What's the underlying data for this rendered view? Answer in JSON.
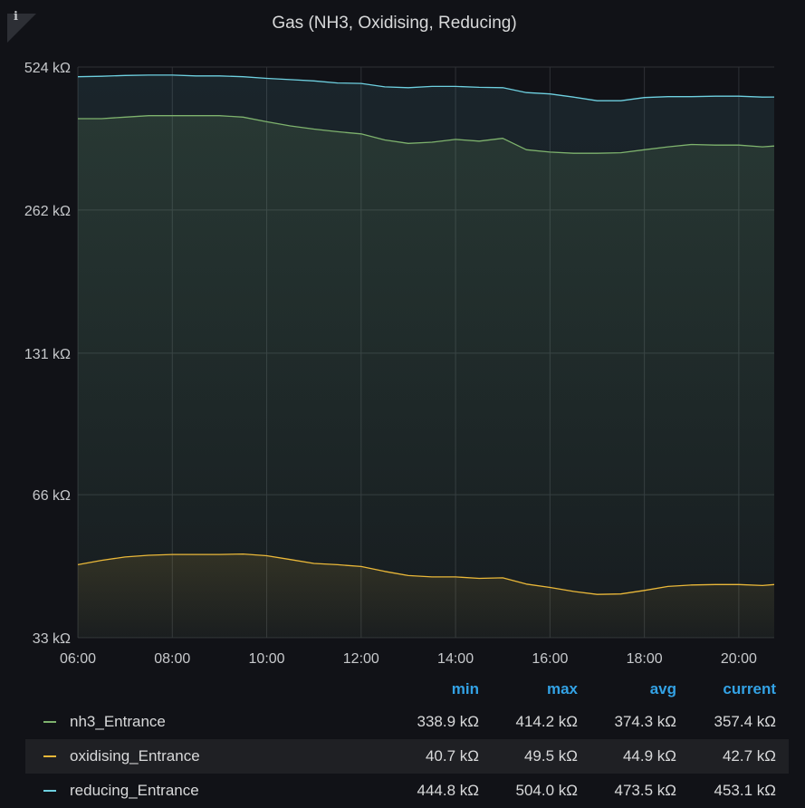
{
  "panel": {
    "info_glyph": "i",
    "title": "Gas (NH3, Oxidising, Reducing)"
  },
  "chart_data": {
    "type": "line",
    "title": "Gas (NH3, Oxidising, Reducing)",
    "y_scale": "log",
    "ylim": [
      33,
      524
    ],
    "yticks": [
      {
        "value": 33,
        "label": "33 kΩ"
      },
      {
        "value": 66,
        "label": "66 kΩ"
      },
      {
        "value": 131,
        "label": "131 kΩ"
      },
      {
        "value": 262,
        "label": "262 kΩ"
      },
      {
        "value": 524,
        "label": "524 kΩ"
      }
    ],
    "x_unit": "hours of day",
    "xlim": [
      6,
      20.75
    ],
    "xticks": [
      {
        "value": 6,
        "label": "06:00"
      },
      {
        "value": 8,
        "label": "08:00"
      },
      {
        "value": 10,
        "label": "10:00"
      },
      {
        "value": 12,
        "label": "12:00"
      },
      {
        "value": 14,
        "label": "14:00"
      },
      {
        "value": 16,
        "label": "16:00"
      },
      {
        "value": 18,
        "label": "18:00"
      },
      {
        "value": 20,
        "label": "20:00"
      }
    ],
    "grid": true,
    "legend_placement": "bottom",
    "x": [
      6,
      6.5,
      7,
      7.5,
      8,
      8.5,
      9,
      9.5,
      10,
      10.5,
      11,
      11.5,
      12,
      12.5,
      13,
      13.5,
      14,
      14.5,
      15,
      15.5,
      16,
      16.5,
      17,
      17.5,
      18,
      18.5,
      19,
      19.5,
      20,
      20.5,
      20.75
    ],
    "series": [
      {
        "name": "nh3_Entrance",
        "color": "#7eb26d",
        "values": [
          408,
          408,
          411,
          414,
          414,
          414,
          414,
          411,
          402,
          394,
          388,
          383,
          379,
          368,
          362,
          364,
          369,
          366,
          371,
          351,
          347,
          345,
          345,
          346,
          351,
          356,
          360,
          359,
          359,
          356,
          357.4
        ]
      },
      {
        "name": "oxidising_Entrance",
        "color": "#eab839",
        "values": [
          47.0,
          48.0,
          48.8,
          49.2,
          49.4,
          49.4,
          49.4,
          49.5,
          49.1,
          48.2,
          47.3,
          47.0,
          46.6,
          45.5,
          44.6,
          44.3,
          44.3,
          44.0,
          44.1,
          42.8,
          42.1,
          41.3,
          40.7,
          40.8,
          41.5,
          42.3,
          42.6,
          42.7,
          42.7,
          42.5,
          42.7
        ]
      },
      {
        "name": "reducing_Entrance",
        "color": "#6ed0e0",
        "values": [
          500,
          501,
          503,
          504,
          504,
          502,
          502,
          500,
          496,
          493,
          490,
          485,
          484,
          476,
          474,
          477,
          477,
          475,
          474,
          463,
          460,
          453,
          445,
          445,
          452,
          454,
          454,
          455,
          455,
          453,
          453.1
        ]
      }
    ]
  },
  "legend": {
    "headers": {
      "min": "min",
      "max": "max",
      "avg": "avg",
      "current": "current"
    },
    "rows": [
      {
        "name": "nh3_Entrance",
        "color": "#7eb26d",
        "min": "338.9 kΩ",
        "max": "414.2 kΩ",
        "avg": "374.3 kΩ",
        "current": "357.4 kΩ"
      },
      {
        "name": "oxidising_Entrance",
        "color": "#eab839",
        "min": "40.7 kΩ",
        "max": "49.5 kΩ",
        "avg": "44.9 kΩ",
        "current": "42.7 kΩ"
      },
      {
        "name": "reducing_Entrance",
        "color": "#6ed0e0",
        "min": "444.8 kΩ",
        "max": "504.0 kΩ",
        "avg": "473.5 kΩ",
        "current": "453.1 kΩ"
      }
    ]
  }
}
